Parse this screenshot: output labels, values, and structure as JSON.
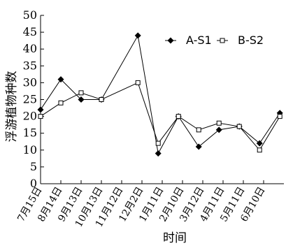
{
  "chart_data": {
    "type": "line",
    "title": "",
    "xlabel": "时间",
    "ylabel": "浮游植物种数",
    "categories": [
      "7月15日",
      "8月14日",
      "9月13日",
      "10月13日",
      "11月12日",
      "12月2日",
      "1月11日",
      "2月10日",
      "3月12日",
      "4月11日",
      "5月11日",
      "6月10日"
    ],
    "x_index": [
      0,
      1,
      2,
      3,
      4.8,
      5.8,
      6.8,
      7.8,
      8.8,
      9.8,
      10.8,
      11.8
    ],
    "ylim": [
      0,
      50
    ],
    "yticks": [
      "0",
      "5",
      "10",
      "15",
      "20",
      "25",
      "30",
      "35",
      "40",
      "45",
      "50"
    ],
    "grid": false,
    "legend_position": "top-right",
    "series": [
      {
        "name": "A-S1",
        "marker": "filled-diamond",
        "color": "#000000",
        "values": [
          22,
          31,
          25,
          25,
          44,
          9,
          20,
          11,
          16,
          17,
          12,
          21
        ]
      },
      {
        "name": "B-S2",
        "marker": "open-square",
        "color": "#000000",
        "values": [
          20,
          24,
          27,
          25,
          30,
          12,
          20,
          16,
          18,
          17,
          10,
          20
        ]
      }
    ]
  }
}
